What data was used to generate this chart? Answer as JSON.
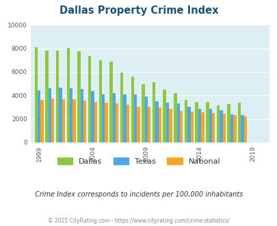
{
  "title": "Dallas Property Crime Index",
  "title_color": "#1a5276",
  "subtitle": "Crime Index corresponds to incidents per 100,000 inhabitants",
  "footer": "© 2025 CityRating.com - https://www.cityrating.com/crime-statistics/",
  "years": [
    1999,
    2000,
    2001,
    2002,
    2003,
    2004,
    2005,
    2006,
    2007,
    2008,
    2009,
    2010,
    2011,
    2012,
    2013,
    2014,
    2015,
    2016,
    2017,
    2018,
    2019,
    2020
  ],
  "dallas": [
    8100,
    7800,
    7800,
    8050,
    7750,
    7350,
    7000,
    6850,
    5950,
    5600,
    4950,
    5100,
    4500,
    4200,
    3600,
    3450,
    3450,
    3150,
    3250,
    3350,
    null,
    null
  ],
  "texas": [
    4450,
    4600,
    4650,
    4600,
    4550,
    4350,
    4100,
    4200,
    4050,
    4050,
    3900,
    3500,
    3350,
    3300,
    3050,
    2850,
    2850,
    2750,
    2400,
    2350,
    null,
    null
  ],
  "national": [
    3600,
    3700,
    3650,
    3650,
    3550,
    3450,
    3350,
    3300,
    3200,
    3050,
    3000,
    2950,
    2850,
    2650,
    2600,
    2550,
    2490,
    2450,
    2350,
    2200,
    null,
    null
  ],
  "xtick_labels": [
    "1999",
    "2004",
    "2009",
    "2014",
    "2019"
  ],
  "xtick_positions": [
    1999,
    2004,
    2009,
    2014,
    2019
  ],
  "ylim": [
    0,
    10000
  ],
  "yticks": [
    0,
    2000,
    4000,
    6000,
    8000,
    10000
  ],
  "bar_width": 0.28,
  "colors": {
    "dallas": "#8dc63f",
    "texas": "#4da6e8",
    "national": "#f5a623"
  },
  "bg_color": "#deeef5",
  "legend_labels": [
    "Dallas",
    "Texas",
    "National"
  ],
  "legend_colors": [
    "#8dc63f",
    "#4da6e8",
    "#f5a623"
  ]
}
